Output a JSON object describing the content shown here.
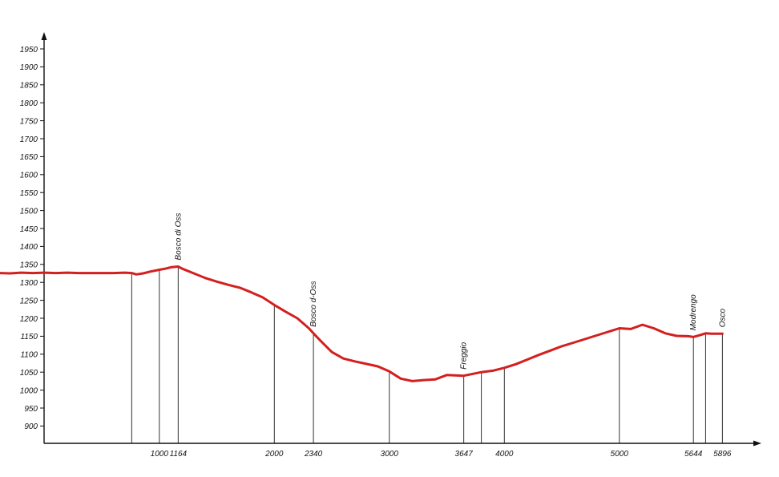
{
  "chart_data": {
    "type": "line",
    "title": "",
    "xlabel": "",
    "ylabel": "",
    "ylim": [
      900,
      1950
    ],
    "y_ticks": [
      900,
      950,
      1000,
      1050,
      1100,
      1150,
      1200,
      1250,
      1300,
      1350,
      1400,
      1450,
      1500,
      1550,
      1600,
      1650,
      1700,
      1750,
      1800,
      1850,
      1900,
      1950
    ],
    "x_tick_labels": [
      "1000",
      "1164",
      "2000",
      "2340",
      "3000",
      "3647",
      "4000",
      "5000",
      "5644",
      "5896"
    ],
    "x_ticks": [
      1000,
      1164,
      2000,
      2340,
      3000,
      3647,
      4000,
      5000,
      5644,
      5896
    ],
    "xlim": [
      -1013,
      6220
    ],
    "grid": false,
    "legend": "none",
    "colors": {
      "profile": "#d41f1f",
      "axis": "#111111",
      "drop_line": "#333333"
    },
    "series": [
      {
        "x": [
          -1013,
          -900,
          -800,
          -700,
          -600,
          -500,
          -400,
          -300,
          -200,
          -100,
          0,
          100,
          200,
          300,
          400,
          500,
          600,
          700,
          760,
          800,
          860,
          920,
          1000,
          1050,
          1100,
          1164,
          1200,
          1300,
          1400,
          1500,
          1600,
          1700,
          1800,
          1900,
          2000,
          2100,
          2200,
          2300,
          2340,
          2400,
          2500,
          2600,
          2700,
          2800,
          2900,
          3000,
          3100,
          3200,
          3300,
          3400,
          3500,
          3647,
          3800,
          3900,
          4000,
          4100,
          4200,
          4300,
          4400,
          4500,
          4600,
          4700,
          4800,
          4900,
          5000,
          5100,
          5200,
          5300,
          5400,
          5500,
          5600,
          5644,
          5700,
          5750,
          5800,
          5896
        ],
        "y": [
          1330,
          1326,
          1327,
          1324,
          1325,
          1323,
          1326,
          1325,
          1327,
          1326,
          1327,
          1326,
          1327,
          1326,
          1326,
          1326,
          1326,
          1327,
          1326,
          1322,
          1325,
          1330,
          1335,
          1338,
          1342,
          1344,
          1338,
          1325,
          1312,
          1302,
          1293,
          1285,
          1272,
          1258,
          1237,
          1218,
          1200,
          1172,
          1158,
          1138,
          1106,
          1088,
          1080,
          1073,
          1066,
          1052,
          1032,
          1025,
          1028,
          1030,
          1042,
          1040,
          1050,
          1054,
          1062,
          1072,
          1085,
          1098,
          1110,
          1122,
          1132,
          1142,
          1152,
          1162,
          1172,
          1170,
          1182,
          1172,
          1158,
          1151,
          1150,
          1148,
          1153,
          1158,
          1157,
          1157
        ]
      }
    ],
    "drop_lines": [
      {
        "x": 760,
        "y": 1326
      },
      {
        "x": 1000,
        "y": 1335
      },
      {
        "x": 1164,
        "y": 1344
      },
      {
        "x": 2000,
        "y": 1237
      },
      {
        "x": 2340,
        "y": 1158
      },
      {
        "x": 3000,
        "y": 1052
      },
      {
        "x": 3647,
        "y": 1040
      },
      {
        "x": 3800,
        "y": 1050
      },
      {
        "x": 4000,
        "y": 1062
      },
      {
        "x": 5000,
        "y": 1172
      },
      {
        "x": 5644,
        "y": 1148
      },
      {
        "x": 5750,
        "y": 1158
      },
      {
        "x": 5896,
        "y": 1157
      }
    ],
    "annotations": [
      {
        "text": "Bosco di Oss",
        "x": 1164,
        "y": 1344
      },
      {
        "text": "Bosco d-Oss",
        "x": 2340,
        "y": 1158
      },
      {
        "text": "Freggio",
        "x": 3647,
        "y": 1040
      },
      {
        "text": "Modrengo",
        "x": 5644,
        "y": 1148
      },
      {
        "text": "Osco",
        "x": 5896,
        "y": 1157
      }
    ]
  }
}
